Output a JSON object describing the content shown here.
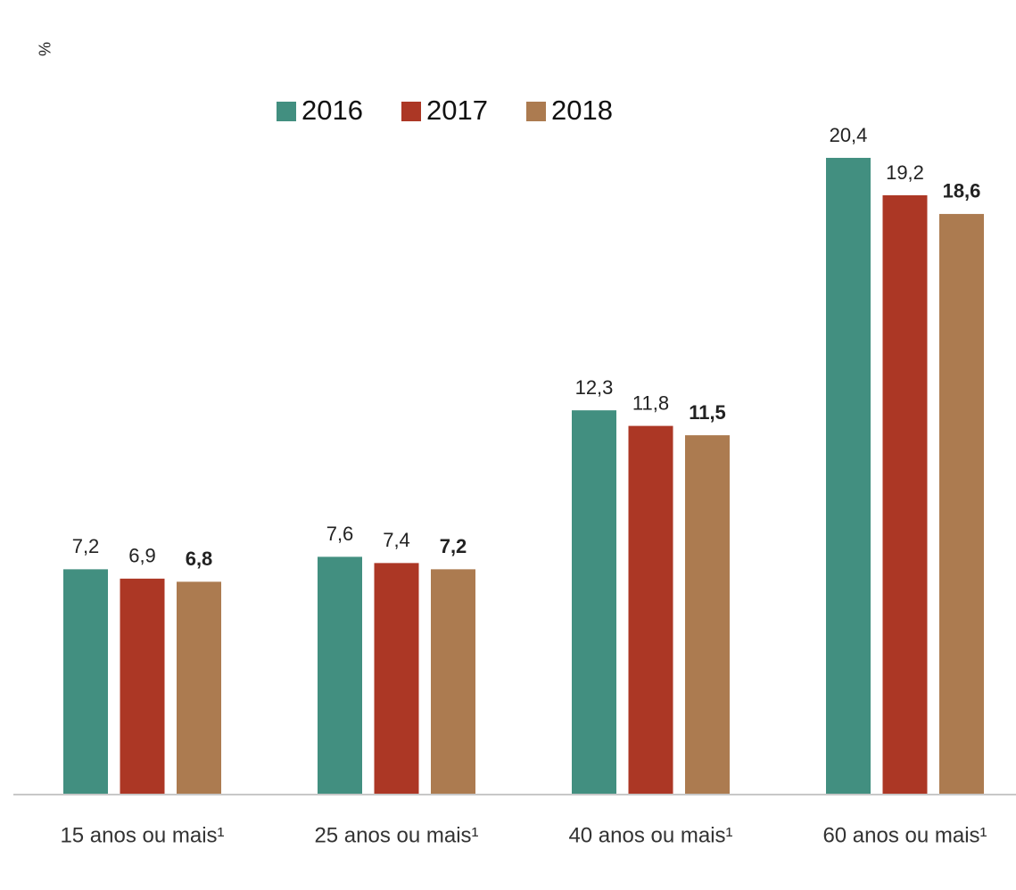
{
  "chart_data": {
    "type": "bar",
    "y_unit": "%",
    "categories": [
      "15 anos ou mais¹",
      "25 anos ou mais¹",
      "40 anos ou mais¹",
      "60 anos ou mais¹"
    ],
    "series": [
      {
        "name": "2016",
        "color": "#428f80",
        "values": [
          7.2,
          7.6,
          12.3,
          20.4
        ],
        "value_labels": [
          "7,2",
          "7,6",
          "12,3",
          "20,4"
        ]
      },
      {
        "name": "2017",
        "color": "#ac3725",
        "values": [
          6.9,
          7.4,
          11.8,
          19.2
        ],
        "value_labels": [
          "6,9",
          "7,4",
          "11,8",
          "19,2"
        ]
      },
      {
        "name": "2018",
        "color": "#ac7b50",
        "values": [
          6.8,
          7.2,
          11.5,
          18.6
        ],
        "value_labels": [
          "6,8",
          "7,2",
          "11,5",
          "18,6"
        ]
      }
    ],
    "legend": "top"
  }
}
